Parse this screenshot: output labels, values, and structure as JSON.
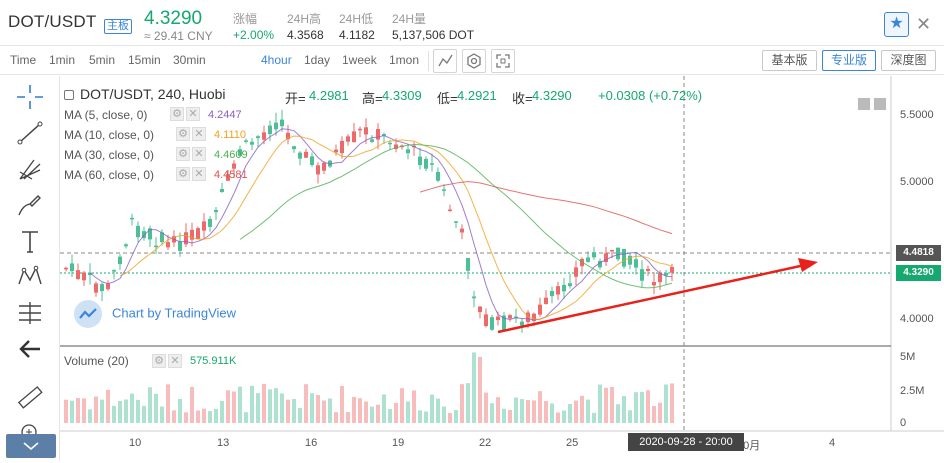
{
  "header": {
    "pair": "DOT/USDT",
    "pair_tag": "主板",
    "last_price": "4.3290",
    "cny_price": "≈ 29.41 CNY",
    "change_label": "涨幅",
    "change_value": "+2.00%",
    "high_label": "24H高",
    "high_value": "4.3568",
    "low_label": "24H低",
    "low_value": "4.1182",
    "volume_label": "24H量",
    "volume_value": "5,137,506 DOT",
    "favorite_icon": "star-icon",
    "close_icon": "close-icon"
  },
  "toolbar": {
    "intervals": [
      "Time",
      "1min",
      "5min",
      "15min",
      "30min",
      "4hour",
      "1day",
      "1week",
      "1mon"
    ],
    "active_interval": "4hour",
    "views": [
      "基本版",
      "专业版",
      "深度图"
    ],
    "active_view": "专业版"
  },
  "chart": {
    "title": "DOT/USDT, 240, Huobi",
    "open_label": "开=",
    "open": "4.2981",
    "high_label": "高=",
    "high": "4.3309",
    "low_label": "低=",
    "low": "4.2921",
    "close_label": "收=",
    "close": "4.3290",
    "change": "+0.0308 (+0.72%)",
    "indicators": [
      {
        "label": "MA (5, close, 0)",
        "value": "4.2447",
        "color": "#8b5cc7"
      },
      {
        "label": "MA (10, close, 0)",
        "value": "4.1110",
        "color": "#f0a020"
      },
      {
        "label": "MA (30, close, 0)",
        "value": "4.4609",
        "color": "#4caf50"
      },
      {
        "label": "MA (60, close, 0)",
        "value": "4.4581",
        "color": "#e05252"
      }
    ],
    "watermark": "Chart by TradingView",
    "volume_label": "Volume (20)",
    "volume_value": "575.911K",
    "price_axis": [
      "5.5000",
      "5.0000",
      "4.5000",
      "4.0000"
    ],
    "price_tag_high": "4.4818",
    "price_tag_last": "4.3290",
    "volume_axis": [
      "5M",
      "2.5M",
      "0"
    ],
    "time_axis": [
      "10",
      "13",
      "16",
      "19",
      "22",
      "25",
      "10月",
      "4"
    ],
    "crosshair_time": "2020-09-28 - 20:00",
    "up_color": "#4cbf96",
    "down_color": "#ee6a6a"
  }
}
